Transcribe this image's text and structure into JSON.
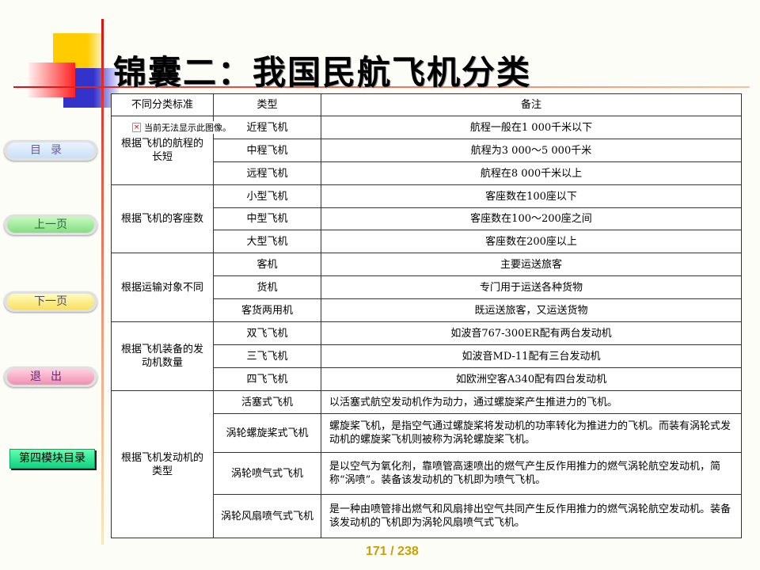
{
  "title": "锦囊二：我国民航飞机分类",
  "nav": {
    "toc": "目录",
    "prev": "上一页",
    "next": "下一页",
    "exit": "退出",
    "module": "第四模块目录"
  },
  "broken_image": "当前无法显示此图像。",
  "table": {
    "headers": [
      "不同分类标准",
      "类型",
      "备注"
    ],
    "groups": [
      {
        "criterion": "根据飞机的航程的长短",
        "rows": [
          [
            "近程飞机",
            "航程一般在1 000千米以下"
          ],
          [
            "中程飞机",
            "航程为3 000～5 000千米"
          ],
          [
            "远程飞机",
            "航程在8 000千米以上"
          ]
        ]
      },
      {
        "criterion": "根据飞机的客座数",
        "rows": [
          [
            "小型飞机",
            "客座数在100座以下"
          ],
          [
            "中型飞机",
            "客座数在100～200座之间"
          ],
          [
            "大型飞机",
            "客座数在200座以上"
          ]
        ]
      },
      {
        "criterion": "根据运输对象不同",
        "rows": [
          [
            "客机",
            "主要运送旅客"
          ],
          [
            "货机",
            "专门用于运送各种货物"
          ],
          [
            "客货两用机",
            "既运送旅客，又运送货物"
          ]
        ]
      },
      {
        "criterion": "根据飞机装备的发动机数量",
        "rows": [
          [
            "双飞飞机",
            "如波音767-300ER配有两台发动机"
          ],
          [
            "三飞飞机",
            "如波音MD-11配有三台发动机"
          ],
          [
            "四飞飞机",
            "如欧洲空客A340配有四台发动机"
          ]
        ]
      },
      {
        "criterion": "根据飞机发动机的类型",
        "rows": [
          [
            "活塞式飞机",
            "以活塞式航空发动机作为动力，通过螺旋桨产生推进力的飞机。"
          ],
          [
            "涡轮螺旋桨式飞机",
            "螺旋桨飞机，是指空气通过螺旋桨将发动机的功率转化为推进力的飞机。而装有涡轮式发动机的螺旋桨飞机则被称为涡轮螺旋桨飞机。"
          ],
          [
            "涡轮喷气式飞机",
            "是以空气为氧化剂，靠喷管高速喷出的燃气产生反作用推力的燃气涡轮航空发动机，简称“涡喷”。装备该发动机的飞机即为喷气飞机。"
          ],
          [
            "涡轮风扇喷气式飞机",
            "是一种由喷管排出燃气和风扇排出空气共同产生反作用推力的燃气涡轮航空发动机。装备该发动机的飞机即为涡轮风扇喷气式飞机。"
          ]
        ]
      }
    ]
  },
  "page": {
    "current": "171",
    "total": "238"
  }
}
